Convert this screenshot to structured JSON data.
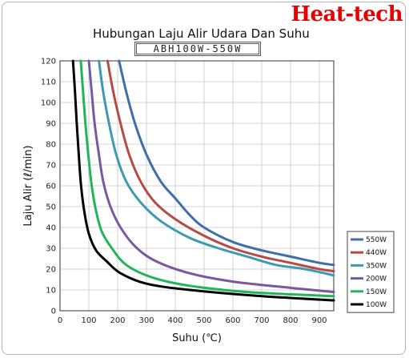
{
  "brand": "Heat-tech",
  "chart_data": {
    "type": "line",
    "title": "Hubungan Laju Alir Udara Dan Suhu",
    "subtitle": "ABH100W-550W",
    "xlabel": "Suhu (℃)",
    "ylabel": "Laju Alir (ℓ/min)",
    "xlim": [
      0,
      950
    ],
    "ylim": [
      0,
      120
    ],
    "xticks": [
      0,
      100,
      200,
      300,
      400,
      500,
      600,
      700,
      800,
      900
    ],
    "yticks": [
      0,
      10,
      20,
      30,
      40,
      50,
      60,
      70,
      80,
      90,
      100,
      110,
      120
    ],
    "grid": true,
    "legend_position": "bottom-right",
    "series": [
      {
        "name": "550W",
        "color": "#3f6fa8",
        "points": [
          [
            205,
            120
          ],
          [
            230,
            105
          ],
          [
            260,
            90
          ],
          [
            300,
            75
          ],
          [
            350,
            62
          ],
          [
            400,
            54
          ],
          [
            450,
            46
          ],
          [
            500,
            40
          ],
          [
            600,
            33
          ],
          [
            700,
            29
          ],
          [
            800,
            26
          ],
          [
            900,
            23
          ],
          [
            950,
            22
          ]
        ]
      },
      {
        "name": "440W",
        "color": "#b84a45",
        "points": [
          [
            165,
            120
          ],
          [
            185,
            105
          ],
          [
            210,
            90
          ],
          [
            240,
            75
          ],
          [
            280,
            62
          ],
          [
            330,
            52
          ],
          [
            400,
            44
          ],
          [
            500,
            36
          ],
          [
            600,
            30
          ],
          [
            700,
            26
          ],
          [
            800,
            23
          ],
          [
            900,
            20
          ],
          [
            950,
            19
          ]
        ]
      },
      {
        "name": "350W",
        "color": "#3d9ab0",
        "points": [
          [
            135,
            120
          ],
          [
            150,
            105
          ],
          [
            170,
            90
          ],
          [
            195,
            75
          ],
          [
            230,
            62
          ],
          [
            280,
            52
          ],
          [
            350,
            43
          ],
          [
            450,
            35
          ],
          [
            550,
            30
          ],
          [
            650,
            26
          ],
          [
            750,
            22
          ],
          [
            850,
            20
          ],
          [
            950,
            17
          ]
        ]
      },
      {
        "name": "200W",
        "color": "#7a58a0",
        "points": [
          [
            100,
            120
          ],
          [
            110,
            105
          ],
          [
            120,
            90
          ],
          [
            135,
            75
          ],
          [
            150,
            62
          ],
          [
            175,
            50
          ],
          [
            210,
            40
          ],
          [
            260,
            31
          ],
          [
            330,
            24
          ],
          [
            450,
            18
          ],
          [
            600,
            14
          ],
          [
            800,
            11
          ],
          [
            950,
            9
          ]
        ]
      },
      {
        "name": "150W",
        "color": "#22b45a",
        "points": [
          [
            72,
            120
          ],
          [
            80,
            105
          ],
          [
            88,
            90
          ],
          [
            98,
            75
          ],
          [
            110,
            60
          ],
          [
            125,
            48
          ],
          [
            145,
            38
          ],
          [
            180,
            30
          ],
          [
            230,
            22
          ],
          [
            320,
            16
          ],
          [
            450,
            12
          ],
          [
            650,
            9
          ],
          [
            950,
            7
          ]
        ]
      },
      {
        "name": "100W",
        "color": "#000000",
        "points": [
          [
            45,
            120
          ],
          [
            52,
            105
          ],
          [
            58,
            90
          ],
          [
            65,
            75
          ],
          [
            73,
            60
          ],
          [
            85,
            47
          ],
          [
            100,
            37
          ],
          [
            125,
            29
          ],
          [
            160,
            24
          ],
          [
            210,
            18
          ],
          [
            300,
            13
          ],
          [
            450,
            10
          ],
          [
            700,
            7
          ],
          [
            950,
            5
          ]
        ]
      }
    ]
  }
}
